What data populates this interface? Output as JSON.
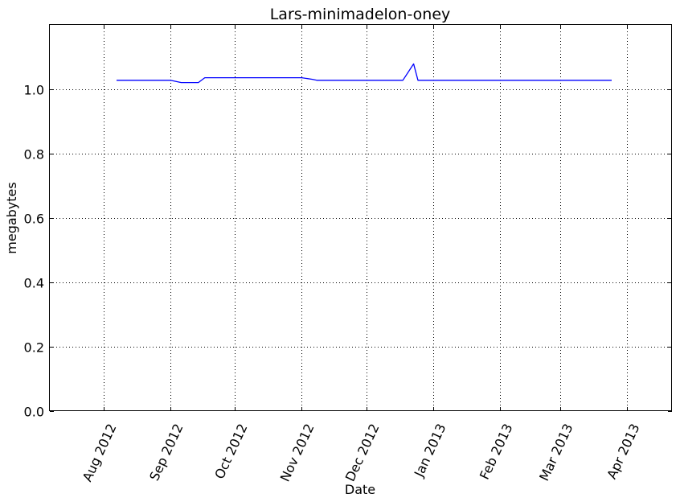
{
  "chart_data": {
    "type": "line",
    "title": "Lars-minimadelon-oney",
    "xlabel": "Date",
    "ylabel": "megabytes",
    "x_ticks": [
      "2012-08-01",
      "2012-09-01",
      "2012-10-01",
      "2012-11-01",
      "2012-12-01",
      "2013-01-01",
      "2013-02-01",
      "2013-03-01",
      "2013-04-01"
    ],
    "x_tick_labels": [
      "Aug 2012",
      "Sep 2012",
      "Oct 2012",
      "Nov 2012",
      "Dec 2012",
      "Jan 2013",
      "Feb 2013",
      "Mar 2013",
      "Apr 2013"
    ],
    "y_ticks": [
      0.0,
      0.2,
      0.4,
      0.6,
      0.8,
      1.0
    ],
    "y_tick_labels": [
      "0.0",
      "0.2",
      "0.4",
      "0.6",
      "0.8",
      "1.0"
    ],
    "xlim": [
      "2012-07-07",
      "2013-04-22"
    ],
    "ylim": [
      0.0,
      1.2
    ],
    "grid": true,
    "color": "#0000ff",
    "series": [
      {
        "x": [
          "2012-08-07",
          "2012-09-01",
          "2012-09-06",
          "2012-09-14",
          "2012-09-17",
          "2012-11-01",
          "2012-11-06",
          "2012-11-08",
          "2012-12-18",
          "2012-12-23",
          "2012-12-25",
          "2013-03-25"
        ],
        "values": [
          1.028,
          1.028,
          1.021,
          1.021,
          1.036,
          1.036,
          1.031,
          1.028,
          1.028,
          1.079,
          1.028,
          1.028
        ]
      }
    ]
  }
}
